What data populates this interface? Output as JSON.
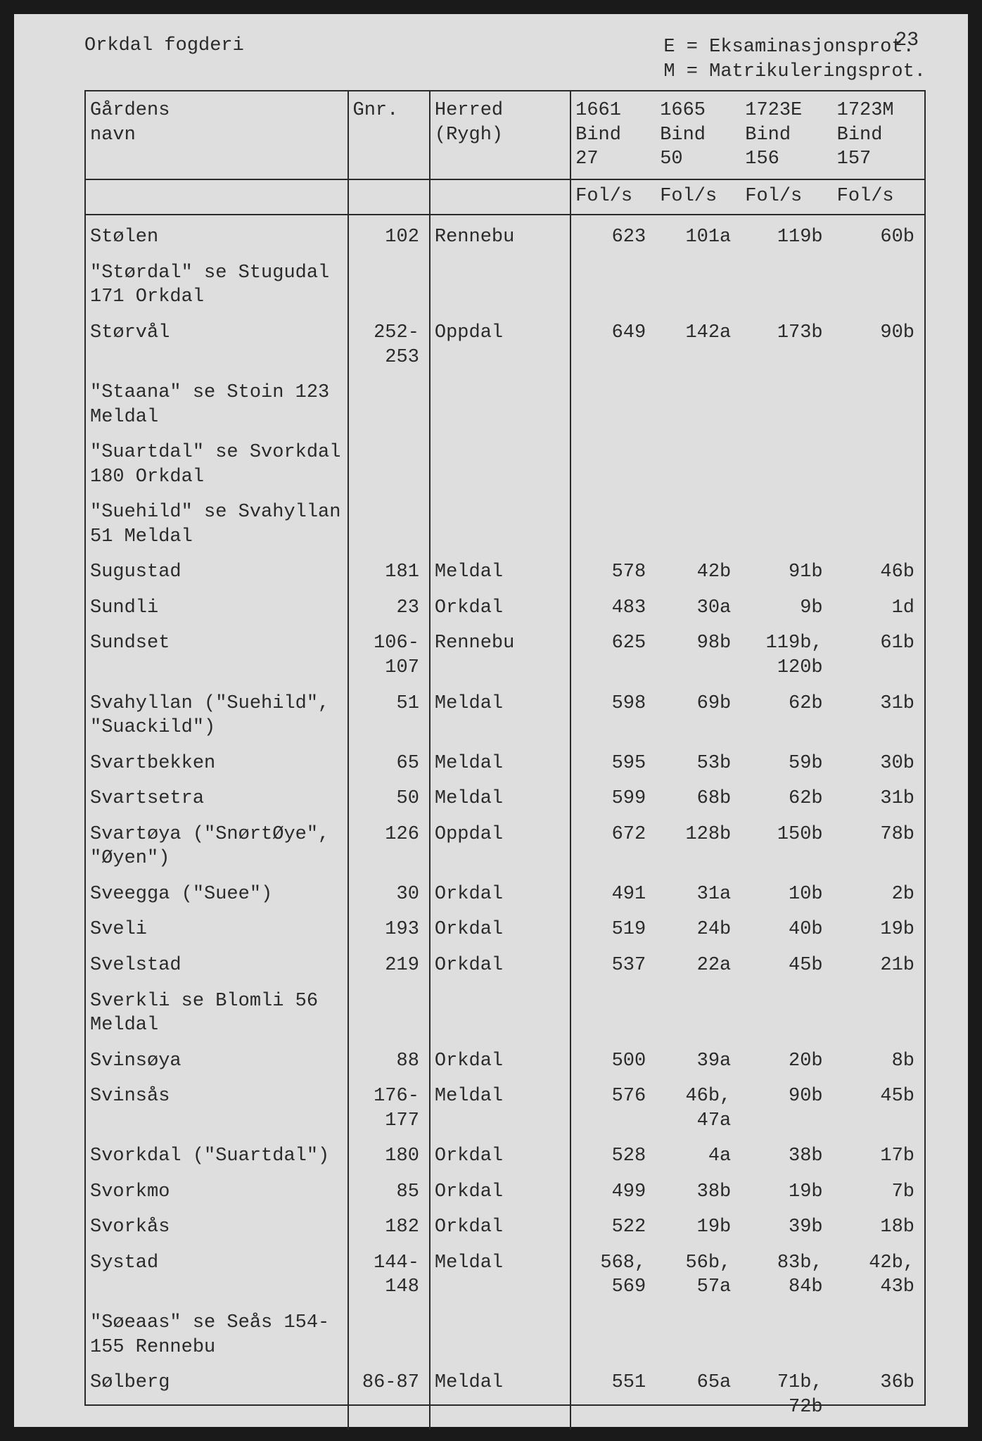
{
  "page_number": "23",
  "header": {
    "left": "Orkdal fogderi",
    "right_line1": "E = Eksaminasjonsprot.",
    "right_line2": "M = Matrikuleringsprot."
  },
  "columns": {
    "name_l1": "Gårdens",
    "name_l2": "navn",
    "gnr": "Gnr.",
    "herred_l1": "Herred",
    "herred_l2": "(Rygh)",
    "c1661_l1": "1661",
    "c1661_l2": "Bind",
    "c1661_l3": "27",
    "c1665_l1": "1665",
    "c1665_l2": "Bind",
    "c1665_l3": "50",
    "c1723e_l1": "1723E",
    "c1723e_l2": "Bind",
    "c1723e_l3": "156",
    "c1723m_l1": "1723M",
    "c1723m_l2": "Bind",
    "c1723m_l3": "157",
    "fols": "Fol/s"
  },
  "rows": [
    {
      "name": "Stølen",
      "gnr": "102",
      "herred": "Rennebu",
      "c1": "623",
      "c2": "101a",
      "c3": "119b",
      "c4": "60b"
    },
    {
      "name": "\"Størdal\" se Stugudal 171 Orkdal"
    },
    {
      "name": "Størvål",
      "gnr": "252-253",
      "herred": "Oppdal",
      "c1": "649",
      "c2": "142a",
      "c3": "173b",
      "c4": "90b"
    },
    {
      "name": "\"Staana\" se Stoin 123 Meldal"
    },
    {
      "name": "\"Suartdal\" se Svorkdal 180 Orkdal"
    },
    {
      "name": "\"Suehild\" se Svahyllan 51 Meldal"
    },
    {
      "name": "Sugustad",
      "gnr": "181",
      "herred": "Meldal",
      "c1": "578",
      "c2": "42b",
      "c3": "91b",
      "c4": "46b"
    },
    {
      "name": "Sundli",
      "gnr": "23",
      "herred": "Orkdal",
      "c1": "483",
      "c2": "30a",
      "c3": "9b",
      "c4": "1d"
    },
    {
      "name": "Sundset",
      "gnr": "106-107",
      "herred": "Rennebu",
      "c1": "625",
      "c2": "98b",
      "c3": "119b, 120b",
      "c4": "61b"
    },
    {
      "name": "Svahyllan (\"Suehild\", \"Suackild\")",
      "gnr": "51",
      "herred": "Meldal",
      "c1": "598",
      "c2": "69b",
      "c3": "62b",
      "c4": "31b"
    },
    {
      "name": "Svartbekken",
      "gnr": "65",
      "herred": "Meldal",
      "c1": "595",
      "c2": "53b",
      "c3": "59b",
      "c4": "30b"
    },
    {
      "name": "Svartsetra",
      "gnr": "50",
      "herred": "Meldal",
      "c1": "599",
      "c2": "68b",
      "c3": "62b",
      "c4": "31b"
    },
    {
      "name": "Svartøya (\"SnørtØye\", \"Øyen\")",
      "gnr": "126",
      "herred": "Oppdal",
      "c1": "672",
      "c2": "128b",
      "c3": "150b",
      "c4": "78b"
    },
    {
      "name": "Sveegga (\"Suee\")",
      "gnr": "30",
      "herred": "Orkdal",
      "c1": "491",
      "c2": "31a",
      "c3": "10b",
      "c4": "2b"
    },
    {
      "name": "Sveli",
      "gnr": "193",
      "herred": "Orkdal",
      "c1": "519",
      "c2": "24b",
      "c3": "40b",
      "c4": "19b"
    },
    {
      "name": "Svelstad",
      "gnr": "219",
      "herred": "Orkdal",
      "c1": "537",
      "c2": "22a",
      "c3": "45b",
      "c4": "21b"
    },
    {
      "name": "Sverkli se Blomli 56 Meldal"
    },
    {
      "name": "Svinsøya",
      "gnr": "88",
      "herred": "Orkdal",
      "c1": "500",
      "c2": "39a",
      "c3": "20b",
      "c4": "8b"
    },
    {
      "name": "Svinsås",
      "gnr": "176-177",
      "herred": "Meldal",
      "c1": "576",
      "c2": "46b, 47a",
      "c3": "90b",
      "c4": "45b"
    },
    {
      "name": "Svorkdal (\"Suartdal\")",
      "gnr": "180",
      "herred": "Orkdal",
      "c1": "528",
      "c2": "4a",
      "c3": "38b",
      "c4": "17b"
    },
    {
      "name": "Svorkmo",
      "gnr": "85",
      "herred": "Orkdal",
      "c1": "499",
      "c2": "38b",
      "c3": "19b",
      "c4": "7b"
    },
    {
      "name": "Svorkås",
      "gnr": "182",
      "herred": "Orkdal",
      "c1": "522",
      "c2": "19b",
      "c3": "39b",
      "c4": "18b"
    },
    {
      "name": "Systad",
      "gnr": "144-148",
      "herred": "Meldal",
      "c1": "568, 569",
      "c2": "56b, 57a",
      "c3": "83b, 84b",
      "c4": "42b, 43b"
    },
    {
      "name": "\"Søeaas\" se Seås 154-155 Rennebu"
    },
    {
      "name": "Sølberg",
      "gnr": "86-87",
      "herred": "Meldal",
      "c1": "551",
      "c2": "65a",
      "c3": "71b, 72b",
      "c4": "36b"
    }
  ]
}
